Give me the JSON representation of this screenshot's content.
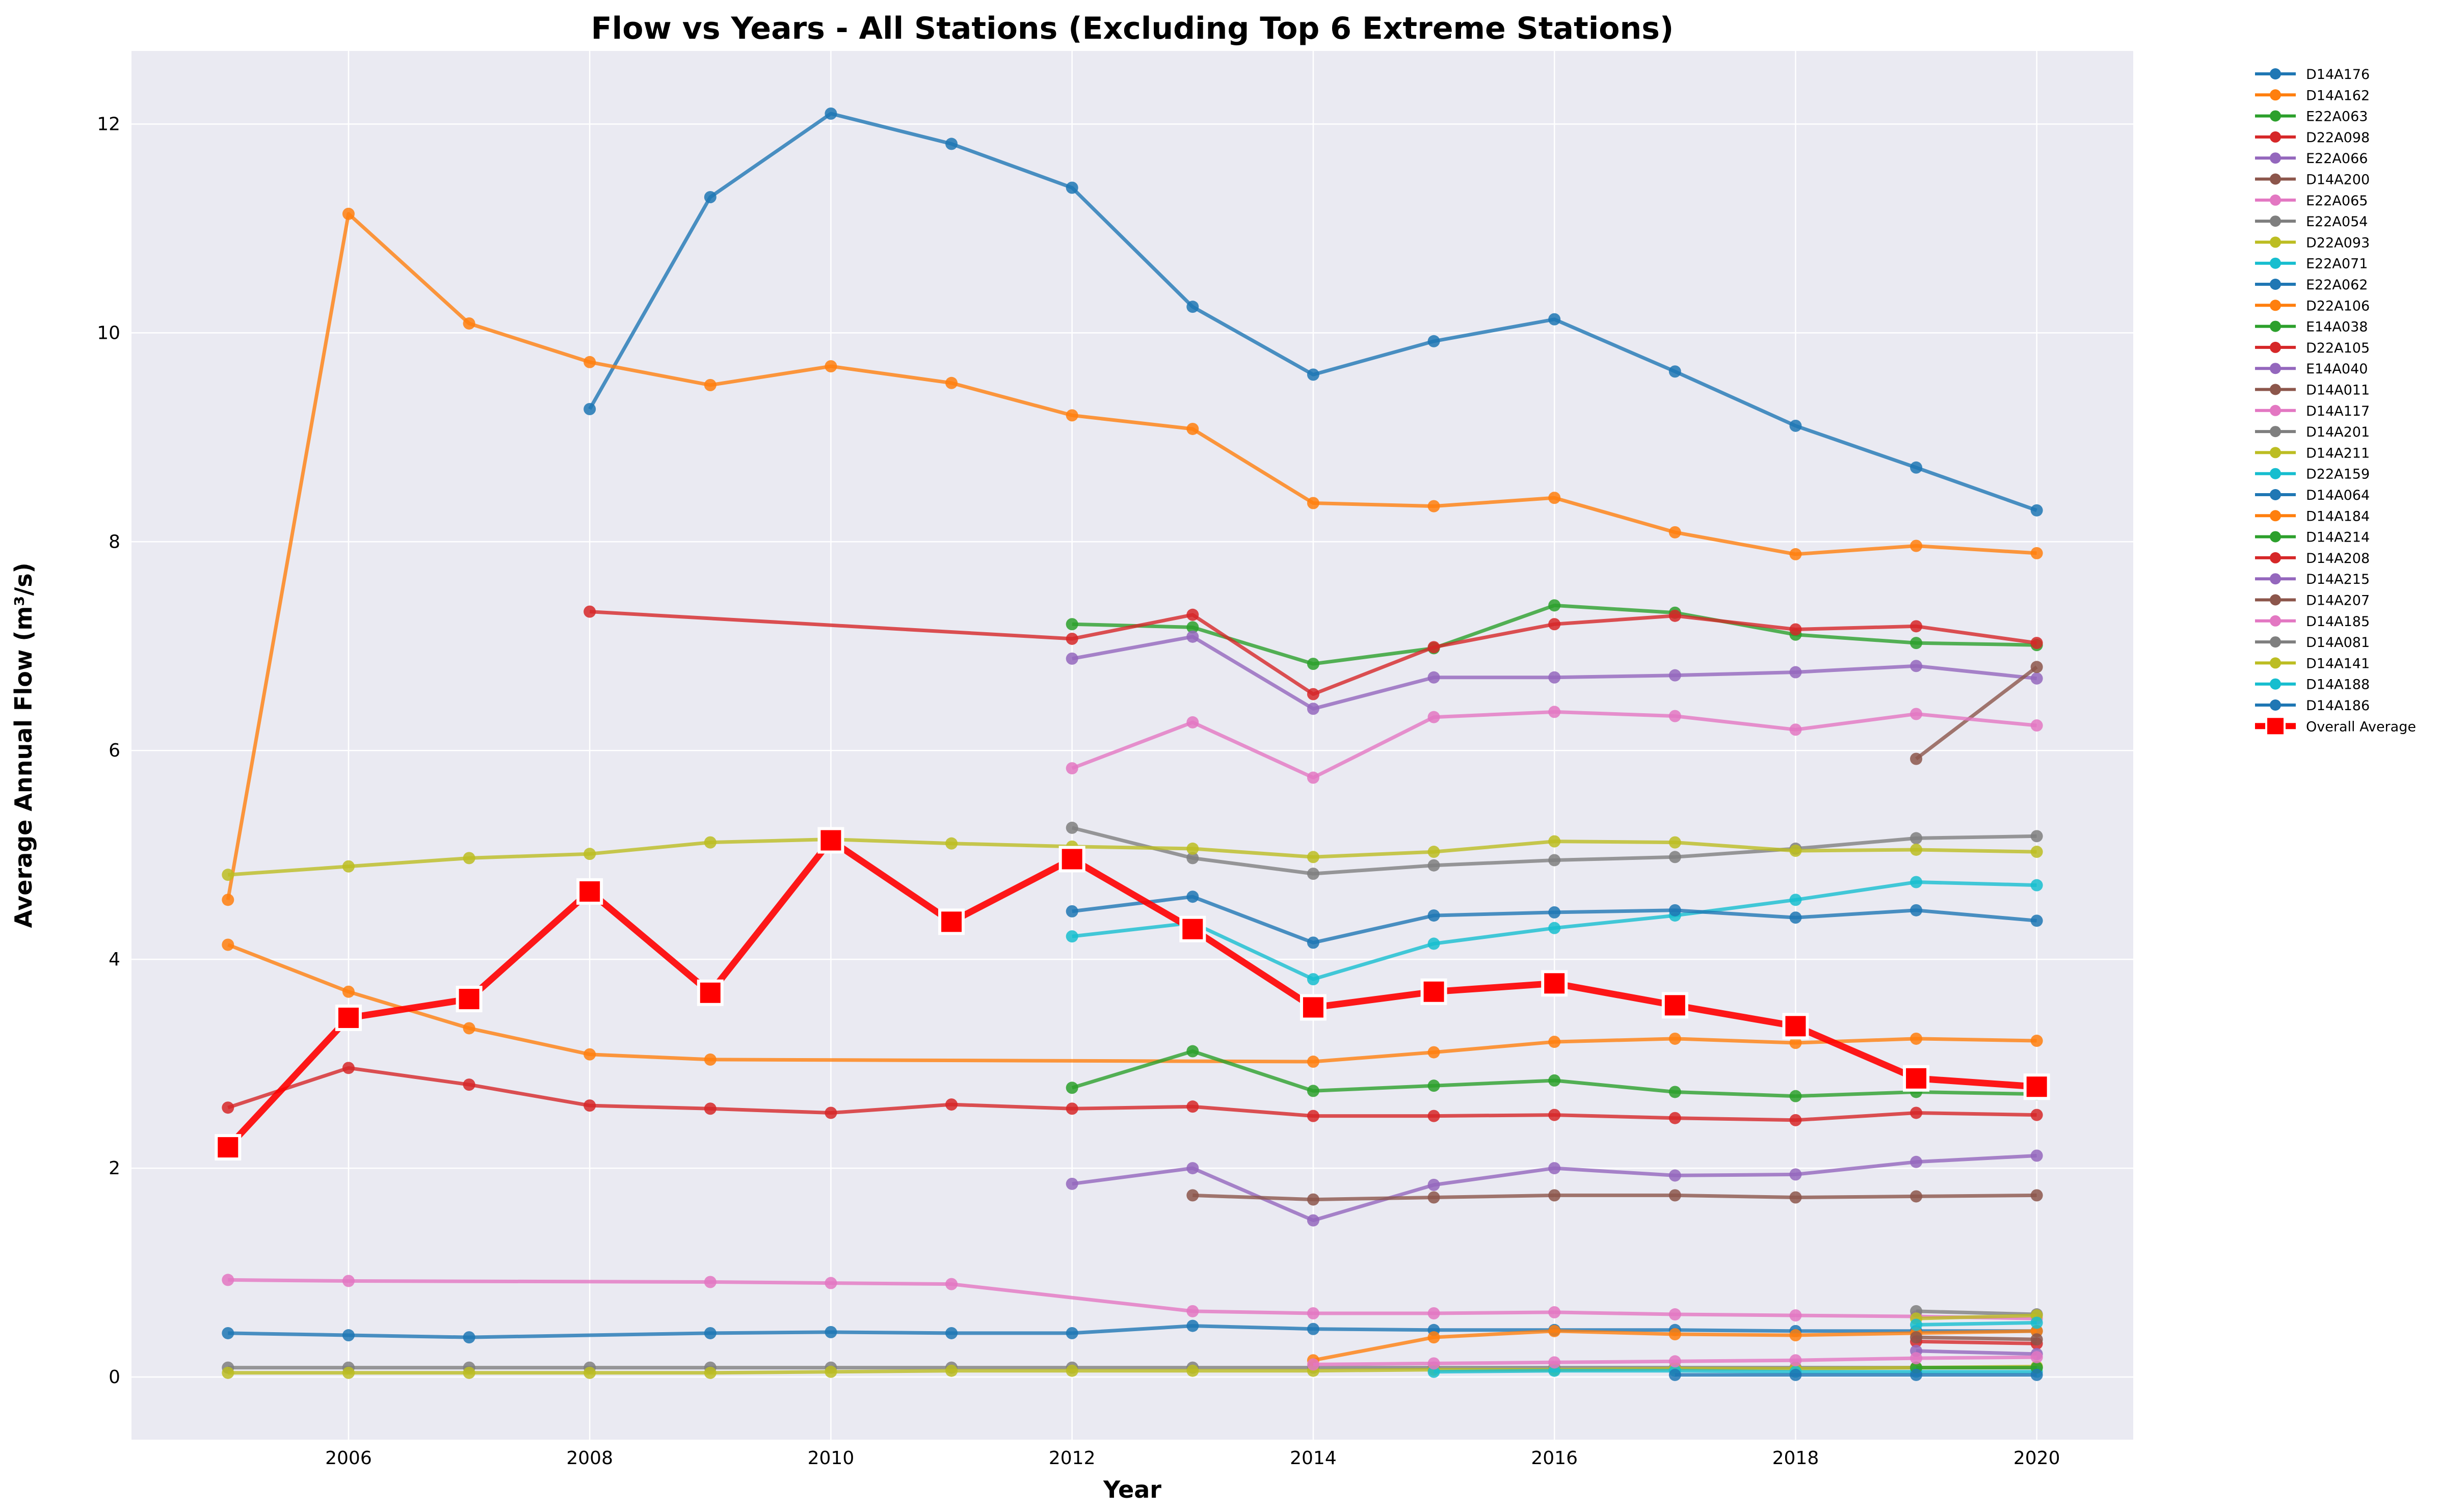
{
  "chart_data": {
    "type": "line",
    "title": "Flow vs Years - All Stations (Excluding Top 6 Extreme Stations)",
    "xlabel": "Year",
    "ylabel": "Average Annual Flow (m³/s)",
    "xlim": [
      2004.2,
      2020.8
    ],
    "ylim": [
      -0.6,
      12.7
    ],
    "xticks": [
      2006,
      2008,
      2010,
      2012,
      2014,
      2016,
      2018,
      2020
    ],
    "yticks": [
      0,
      2,
      4,
      6,
      8,
      10,
      12
    ],
    "grid": true,
    "legend_position": "outside-right",
    "series": [
      {
        "name": "D14A176",
        "color": "#1f77b4",
        "x": [
          2008,
          2009,
          2010,
          2011,
          2012,
          2013,
          2014,
          2015,
          2016,
          2017,
          2018,
          2019,
          2020
        ],
        "y": [
          9.27,
          11.3,
          12.1,
          11.81,
          11.39,
          10.25,
          9.6,
          9.92,
          10.13,
          9.63,
          9.11,
          8.71,
          8.3
        ]
      },
      {
        "name": "D14A162",
        "color": "#ff7f0e",
        "x": [
          2005,
          2006,
          2007,
          2008,
          2009,
          2010,
          2011,
          2012,
          2013,
          2014,
          2015,
          2016,
          2017,
          2018,
          2019,
          2020
        ],
        "y": [
          4.57,
          11.14,
          10.09,
          9.72,
          9.5,
          9.68,
          9.52,
          9.21,
          9.08,
          8.37,
          8.34,
          8.42,
          8.09,
          7.88,
          7.96,
          7.89
        ]
      },
      {
        "name": "E22A063",
        "color": "#2ca02c",
        "x": [
          2012,
          2013,
          2014,
          2015,
          2016,
          2017,
          2018,
          2019,
          2020
        ],
        "y": [
          7.21,
          7.18,
          6.83,
          6.98,
          7.39,
          7.32,
          7.11,
          7.03,
          7.01
        ]
      },
      {
        "name": "D22A098",
        "color": "#d62728",
        "x": [
          2008,
          2012,
          2013,
          2014,
          2015,
          2016,
          2017,
          2018,
          2019,
          2020
        ],
        "y": [
          7.33,
          7.07,
          7.3,
          6.54,
          6.99,
          7.21,
          7.29,
          7.16,
          7.19,
          7.03
        ]
      },
      {
        "name": "E22A066",
        "color": "#9467bd",
        "x": [
          2012,
          2013,
          2014,
          2015,
          2016,
          2017,
          2018,
          2019,
          2020
        ],
        "y": [
          6.88,
          7.09,
          6.4,
          6.7,
          6.7,
          6.72,
          6.75,
          6.81,
          6.69
        ]
      },
      {
        "name": "D14A200",
        "color": "#8c564b",
        "x": [
          2019,
          2020
        ],
        "y": [
          5.92,
          6.8
        ]
      },
      {
        "name": "E22A065",
        "color": "#e377c2",
        "x": [
          2012,
          2013,
          2014,
          2015,
          2016,
          2017,
          2018,
          2019,
          2020
        ],
        "y": [
          5.83,
          6.27,
          5.74,
          6.32,
          6.37,
          6.33,
          6.2,
          6.35,
          6.24
        ]
      },
      {
        "name": "E22A054",
        "color": "#7f7f7f",
        "x": [
          2012,
          2013,
          2014,
          2015,
          2016,
          2017,
          2018,
          2019,
          2020
        ],
        "y": [
          5.26,
          4.97,
          4.82,
          4.9,
          4.95,
          4.98,
          5.06,
          5.16,
          5.18
        ]
      },
      {
        "name": "D22A093",
        "color": "#bcbd22",
        "x": [
          2005,
          2006,
          2007,
          2008,
          2009,
          2010,
          2011,
          2012,
          2013,
          2014,
          2015,
          2016,
          2017,
          2018,
          2019,
          2020
        ],
        "y": [
          4.81,
          4.89,
          4.97,
          5.01,
          5.12,
          5.15,
          5.11,
          5.08,
          5.06,
          4.98,
          5.03,
          5.13,
          5.12,
          5.04,
          5.05,
          5.03
        ]
      },
      {
        "name": "E22A071",
        "color": "#17becf",
        "x": [
          2012,
          2013,
          2014,
          2015,
          2016,
          2017,
          2018,
          2019,
          2020
        ],
        "y": [
          4.22,
          4.35,
          3.81,
          4.15,
          4.3,
          4.42,
          4.57,
          4.74,
          4.71
        ]
      },
      {
        "name": "E22A062",
        "color": "#1f77b4",
        "x": [
          2012,
          2013,
          2014,
          2015,
          2016,
          2017,
          2018,
          2019,
          2020
        ],
        "y": [
          4.46,
          4.6,
          4.16,
          4.42,
          4.45,
          4.47,
          4.4,
          4.47,
          4.37
        ]
      },
      {
        "name": "D22A106",
        "color": "#ff7f0e",
        "x": [
          2005,
          2006,
          2007,
          2008,
          2009,
          2014,
          2015,
          2016,
          2017,
          2018,
          2019,
          2020
        ],
        "y": [
          4.14,
          3.69,
          3.34,
          3.09,
          3.04,
          3.02,
          3.11,
          3.21,
          3.24,
          3.2,
          3.24,
          3.22
        ]
      },
      {
        "name": "E14A038",
        "color": "#2ca02c",
        "x": [
          2012,
          2013,
          2014,
          2015,
          2016,
          2017,
          2018,
          2019,
          2020
        ],
        "y": [
          2.77,
          3.12,
          2.74,
          2.79,
          2.84,
          2.73,
          2.69,
          2.73,
          2.71
        ]
      },
      {
        "name": "D22A105",
        "color": "#d62728",
        "x": [
          2005,
          2006,
          2007,
          2008,
          2009,
          2010,
          2011,
          2012,
          2013,
          2014,
          2015,
          2016,
          2017,
          2018,
          2019,
          2020
        ],
        "y": [
          2.58,
          2.96,
          2.8,
          2.6,
          2.57,
          2.53,
          2.61,
          2.57,
          2.59,
          2.5,
          2.5,
          2.51,
          2.48,
          2.46,
          2.53,
          2.51
        ]
      },
      {
        "name": "E14A040",
        "color": "#9467bd",
        "x": [
          2012,
          2013,
          2014,
          2015,
          2016,
          2017,
          2018,
          2019,
          2020
        ],
        "y": [
          1.85,
          2.0,
          1.5,
          1.84,
          2.0,
          1.93,
          1.94,
          2.06,
          2.12
        ]
      },
      {
        "name": "D14A011",
        "color": "#8c564b",
        "x": [
          2013,
          2014,
          2015,
          2016,
          2017,
          2018,
          2019,
          2020
        ],
        "y": [
          1.74,
          1.7,
          1.72,
          1.74,
          1.74,
          1.72,
          1.73,
          1.74
        ]
      },
      {
        "name": "D14A117",
        "color": "#e377c2",
        "x": [
          2005,
          2006,
          2009,
          2010,
          2011,
          2013,
          2014,
          2015,
          2016,
          2017,
          2018,
          2019,
          2020
        ],
        "y": [
          0.93,
          0.92,
          0.91,
          0.9,
          0.89,
          0.63,
          0.61,
          0.61,
          0.62,
          0.6,
          0.59,
          0.58,
          0.56
        ]
      },
      {
        "name": "D14A201",
        "color": "#7f7f7f",
        "x": [
          2005,
          2006,
          2007,
          2008,
          2009,
          2010,
          2011,
          2012,
          2013,
          2014,
          2015,
          2016,
          2017,
          2018,
          2019,
          2020
        ],
        "y": [
          0.09,
          0.09,
          0.09,
          0.09,
          0.09,
          0.09,
          0.09,
          0.09,
          0.09,
          0.09,
          0.09,
          0.09,
          0.09,
          0.09,
          0.09,
          0.09
        ]
      },
      {
        "name": "D14A211",
        "color": "#bcbd22",
        "x": [
          2005,
          2006,
          2007,
          2008,
          2009,
          2010,
          2011,
          2012,
          2013,
          2014,
          2015,
          2016,
          2017,
          2018,
          2019,
          2020
        ],
        "y": [
          0.04,
          0.04,
          0.04,
          0.04,
          0.04,
          0.05,
          0.06,
          0.06,
          0.06,
          0.06,
          0.07,
          0.07,
          0.08,
          0.08,
          0.09,
          0.1
        ]
      },
      {
        "name": "D22A159",
        "color": "#17becf",
        "x": [
          2015,
          2016,
          2017,
          2018,
          2019,
          2020
        ],
        "y": [
          0.05,
          0.06,
          0.06,
          0.05,
          0.05,
          0.05
        ]
      },
      {
        "name": "D14A064",
        "color": "#1f77b4",
        "x": [
          2005,
          2006,
          2007,
          2009,
          2010,
          2011,
          2012,
          2013,
          2014,
          2015,
          2016,
          2017,
          2018,
          2019,
          2020
        ],
        "y": [
          0.42,
          0.4,
          0.38,
          0.42,
          0.43,
          0.42,
          0.42,
          0.49,
          0.46,
          0.45,
          0.45,
          0.45,
          0.44,
          0.44,
          0.44
        ]
      },
      {
        "name": "D14A184",
        "color": "#ff7f0e",
        "x": [
          2014,
          2015,
          2016,
          2017,
          2018,
          2019,
          2020
        ],
        "y": [
          0.16,
          0.38,
          0.44,
          0.41,
          0.4,
          0.42,
          0.44
        ]
      },
      {
        "name": "D14A214",
        "color": "#2ca02c",
        "x": [
          2019,
          2020
        ],
        "y": [
          0.09,
          0.09
        ]
      },
      {
        "name": "D14A208",
        "color": "#d62728",
        "x": [
          2019,
          2020
        ],
        "y": [
          0.34,
          0.32
        ]
      },
      {
        "name": "D14A215",
        "color": "#9467bd",
        "x": [
          2019,
          2020
        ],
        "y": [
          0.25,
          0.22
        ]
      },
      {
        "name": "D14A207",
        "color": "#8c564b",
        "x": [
          2019,
          2020
        ],
        "y": [
          0.38,
          0.36
        ]
      },
      {
        "name": "D14A185",
        "color": "#e377c2",
        "x": [
          2014,
          2015,
          2016,
          2017,
          2018,
          2019,
          2020
        ],
        "y": [
          0.12,
          0.13,
          0.14,
          0.15,
          0.16,
          0.18,
          0.19
        ]
      },
      {
        "name": "D14A081",
        "color": "#7f7f7f",
        "x": [
          2019,
          2020
        ],
        "y": [
          0.63,
          0.6
        ]
      },
      {
        "name": "D14A141",
        "color": "#bcbd22",
        "x": [
          2019,
          2020
        ],
        "y": [
          0.56,
          0.59
        ]
      },
      {
        "name": "D14A188",
        "color": "#17becf",
        "x": [
          2019,
          2020
        ],
        "y": [
          0.5,
          0.52
        ]
      },
      {
        "name": "D14A186",
        "color": "#1f77b4",
        "x": [
          2017,
          2018,
          2019,
          2020
        ],
        "y": [
          0.02,
          0.02,
          0.02,
          0.02
        ]
      },
      {
        "name": "Overall Average",
        "color": "#ff0000",
        "x": [
          2005,
          2006,
          2007,
          2008,
          2009,
          2010,
          2011,
          2012,
          2013,
          2014,
          2015,
          2016,
          2017,
          2018,
          2019,
          2020
        ],
        "y": [
          2.2,
          3.44,
          3.62,
          4.65,
          3.68,
          5.14,
          4.36,
          4.96,
          4.29,
          3.54,
          3.69,
          3.77,
          3.56,
          3.36,
          2.86,
          2.78
        ],
        "highlight": true
      }
    ]
  }
}
